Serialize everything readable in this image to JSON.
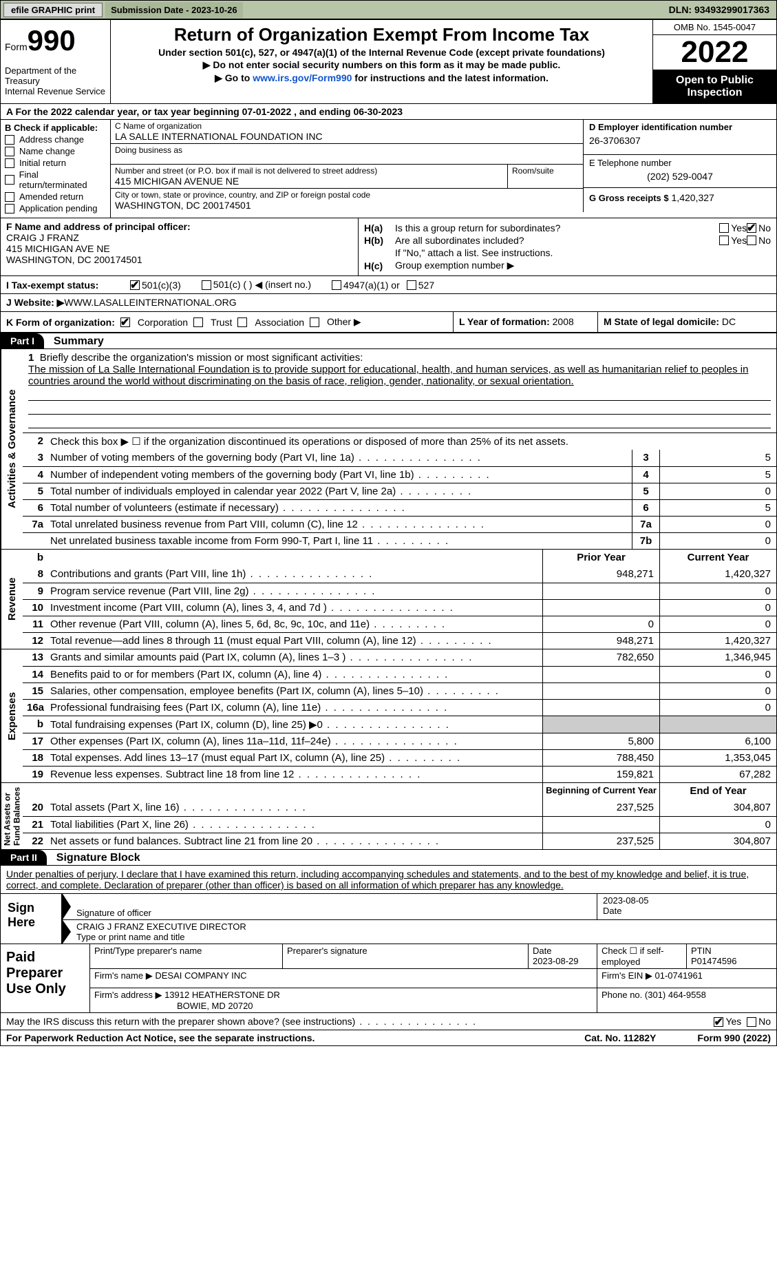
{
  "topbar": {
    "efile": "efile GRAPHIC print",
    "subdate": "Submission Date - 2023-10-26",
    "dln": "DLN: 93493299017363"
  },
  "header": {
    "form": "Form",
    "formnum": "990",
    "dept": "Department of the Treasury\nInternal Revenue Service",
    "title": "Return of Organization Exempt From Income Tax",
    "sub": "Under section 501(c), 527, or 4947(a)(1) of the Internal Revenue Code (except private foundations)",
    "arrow1": "▶ Do not enter social security numbers on this form as it may be made public.",
    "arrow2_pre": "▶ Go to ",
    "arrow2_link": "www.irs.gov/Form990",
    "arrow2_post": " for instructions and the latest information.",
    "omb": "OMB No. 1545-0047",
    "year": "2022",
    "open": "Open to Public Inspection"
  },
  "a_line": "A For the 2022 calendar year, or tax year beginning 07-01-2022    , and ending 06-30-2023",
  "b": {
    "hdr": "B Check if applicable:",
    "items": [
      "Address change",
      "Name change",
      "Initial return",
      "Final return/terminated",
      "Amended return",
      "Application pending"
    ]
  },
  "c": {
    "name_lbl": "C Name of organization",
    "name": "LA SALLE INTERNATIONAL FOUNDATION INC",
    "dba_lbl": "Doing business as",
    "addr_lbl": "Number and street (or P.O. box if mail is not delivered to street address)",
    "addr": "415 MICHIGAN AVENUE NE",
    "room_lbl": "Room/suite",
    "city_lbl": "City or town, state or province, country, and ZIP or foreign postal code",
    "city": "WASHINGTON, DC  200174501"
  },
  "d": {
    "lbl": "D Employer identification number",
    "val": "26-3706307"
  },
  "e": {
    "lbl": "E Telephone number",
    "val": "(202) 529-0047"
  },
  "g": {
    "lbl": "G Gross receipts $",
    "val": "1,420,327"
  },
  "f": {
    "lbl": "F  Name and address of principal officer:",
    "l1": "CRAIG J FRANZ",
    "l2": "415 MICHIGAN AVE NE",
    "l3": "WASHINGTON, DC  200174501"
  },
  "h": {
    "a": "Is this a group return for subordinates?",
    "b": "Are all subordinates included?",
    "note": "If \"No,\" attach a list. See instructions.",
    "c": "Group exemption number ▶"
  },
  "i": {
    "lbl": "I   Tax-exempt status:",
    "o1": "501(c)(3)",
    "o2": "501(c) (  ) ◀ (insert no.)",
    "o3": "4947(a)(1) or",
    "o4": "527"
  },
  "j": {
    "lbl": "J   Website: ▶",
    "val": "  WWW.LASALLEINTERNATIONAL.ORG"
  },
  "k": {
    "lbl": "K Form of organization:",
    "o1": "Corporation",
    "o2": "Trust",
    "o3": "Association",
    "o4": "Other ▶"
  },
  "l": {
    "lbl": "L Year of formation:",
    "val": "2008"
  },
  "m": {
    "lbl": "M State of legal domicile:",
    "val": "DC"
  },
  "part1": {
    "bar": "Part I",
    "title": "Summary"
  },
  "briefly": {
    "num": "1",
    "lbl": "Briefly describe the organization's mission or most significant activities:",
    "text": "The mission of La Salle International Foundation is to provide support for educational, health, and human services, as well as humanitarian relief to peoples in countries around the world without discriminating on the basis of race, religion, gender, nationality, or sexual orientation."
  },
  "line2": "Check this box ▶ ☐  if the organization discontinued its operations or disposed of more than 25% of its net assets.",
  "gov_rows": [
    {
      "n": "3",
      "d": "Number of voting members of the governing body (Part VI, line 1a)",
      "box": "3",
      "v": "5"
    },
    {
      "n": "4",
      "d": "Number of independent voting members of the governing body (Part VI, line 1b)",
      "box": "4",
      "v": "5"
    },
    {
      "n": "5",
      "d": "Total number of individuals employed in calendar year 2022 (Part V, line 2a)",
      "box": "5",
      "v": "0"
    },
    {
      "n": "6",
      "d": "Total number of volunteers (estimate if necessary)",
      "box": "6",
      "v": "5"
    },
    {
      "n": "7a",
      "d": "Total unrelated business revenue from Part VIII, column (C), line 12",
      "box": "7a",
      "v": "0"
    },
    {
      "n": "",
      "d": "Net unrelated business taxable income from Form 990-T, Part I, line 11",
      "box": "7b",
      "v": "0"
    }
  ],
  "rev_hdr": {
    "py": "Prior Year",
    "cy": "Current Year"
  },
  "rev_rows": [
    {
      "n": "8",
      "d": "Contributions and grants (Part VIII, line 1h)",
      "py": "948,271",
      "cy": "1,420,327"
    },
    {
      "n": "9",
      "d": "Program service revenue (Part VIII, line 2g)",
      "py": "",
      "cy": "0"
    },
    {
      "n": "10",
      "d": "Investment income (Part VIII, column (A), lines 3, 4, and 7d )",
      "py": "",
      "cy": "0"
    },
    {
      "n": "11",
      "d": "Other revenue (Part VIII, column (A), lines 5, 6d, 8c, 9c, 10c, and 11e)",
      "py": "0",
      "cy": "0"
    },
    {
      "n": "12",
      "d": "Total revenue—add lines 8 through 11 (must equal Part VIII, column (A), line 12)",
      "py": "948,271",
      "cy": "1,420,327"
    }
  ],
  "exp_rows": [
    {
      "n": "13",
      "d": "Grants and similar amounts paid (Part IX, column (A), lines 1–3 )",
      "py": "782,650",
      "cy": "1,346,945"
    },
    {
      "n": "14",
      "d": "Benefits paid to or for members (Part IX, column (A), line 4)",
      "py": "",
      "cy": "0"
    },
    {
      "n": "15",
      "d": "Salaries, other compensation, employee benefits (Part IX, column (A), lines 5–10)",
      "py": "",
      "cy": "0"
    },
    {
      "n": "16a",
      "d": "Professional fundraising fees (Part IX, column (A), line 11e)",
      "py": "",
      "cy": "0"
    },
    {
      "n": "b",
      "d": "Total fundraising expenses (Part IX, column (D), line 25) ▶0",
      "py": "shaded",
      "cy": "shaded"
    },
    {
      "n": "17",
      "d": "Other expenses (Part IX, column (A), lines 11a–11d, 11f–24e)",
      "py": "5,800",
      "cy": "6,100"
    },
    {
      "n": "18",
      "d": "Total expenses. Add lines 13–17 (must equal Part IX, column (A), line 25)",
      "py": "788,450",
      "cy": "1,353,045"
    },
    {
      "n": "19",
      "d": "Revenue less expenses. Subtract line 18 from line 12",
      "py": "159,821",
      "cy": "67,282"
    }
  ],
  "na_hdr": {
    "py": "Beginning of Current Year",
    "cy": "End of Year"
  },
  "na_rows": [
    {
      "n": "20",
      "d": "Total assets (Part X, line 16)",
      "py": "237,525",
      "cy": "304,807"
    },
    {
      "n": "21",
      "d": "Total liabilities (Part X, line 26)",
      "py": "",
      "cy": "0"
    },
    {
      "n": "22",
      "d": "Net assets or fund balances. Subtract line 21 from line 20",
      "py": "237,525",
      "cy": "304,807"
    }
  ],
  "vtabs": {
    "gov": "Activities & Governance",
    "rev": "Revenue",
    "exp": "Expenses",
    "na": "Net Assets or\nFund Balances"
  },
  "part2": {
    "bar": "Part II",
    "title": "Signature Block"
  },
  "sigtext": "Under penalties of perjury, I declare that I have examined this return, including accompanying schedules and statements, and to the best of my knowledge and belief, it is true, correct, and complete. Declaration of preparer (other than officer) is based on all information of which preparer has any knowledge.",
  "sign": {
    "here": "Sign\nHere",
    "sigof": "Signature of officer",
    "date": "Date",
    "dateval": "2023-08-05",
    "name": "CRAIG J FRANZ  EXECUTIVE DIRECTOR",
    "typeor": "Type or print name and title"
  },
  "paid": {
    "lbl": "Paid\nPreparer\nUse Only",
    "c1": "Print/Type preparer's name",
    "c2": "Preparer's signature",
    "c3": "Date",
    "c3v": "2023-08-29",
    "c4": "Check ☐ if self-employed",
    "c5": "PTIN",
    "c5v": "P01474596",
    "firm_lbl": "Firm's name     ▶",
    "firm": "DESAI COMPANY INC",
    "ein_lbl": "Firm's EIN ▶",
    "ein": "01-0741961",
    "addr_lbl": "Firm's address ▶",
    "addr1": "13912 HEATHERSTONE DR",
    "addr2": "BOWIE, MD  20720",
    "ph_lbl": "Phone no.",
    "ph": "(301) 464-9558"
  },
  "discuss": "May the IRS discuss this return with the preparer shown above? (see instructions)",
  "footer": {
    "l": "For Paperwork Reduction Act Notice, see the separate instructions.",
    "m": "Cat. No. 11282Y",
    "r": "Form 990 (2022)"
  }
}
